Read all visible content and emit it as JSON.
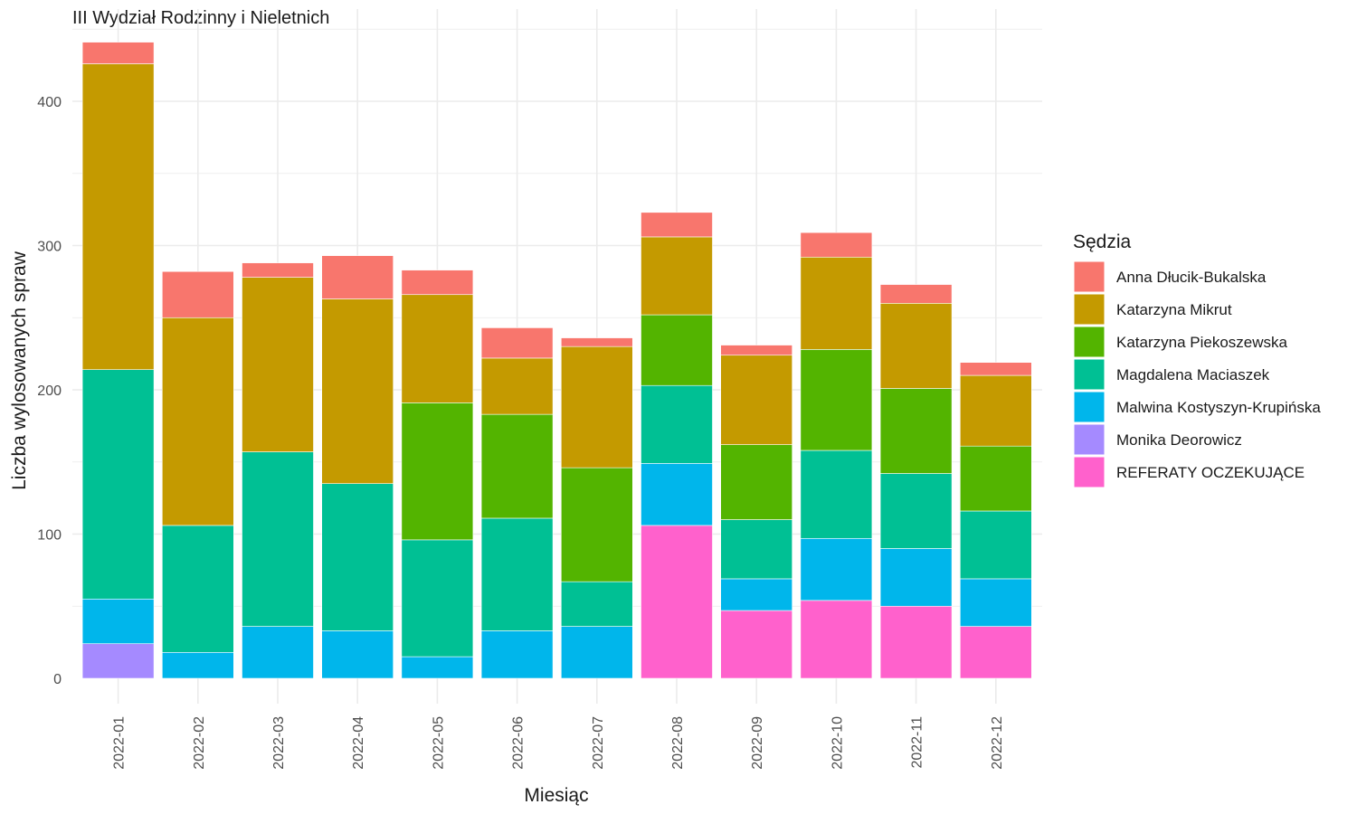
{
  "chart_data": {
    "type": "bar",
    "stacked": true,
    "title": "III Wydział Rodzinny i Nieletnich",
    "xlabel": "Miesiąc",
    "ylabel": "Liczba wylosowanych spraw",
    "ylim": [
      0,
      460
    ],
    "yticks": [
      0,
      100,
      200,
      300,
      400
    ],
    "grid": true,
    "legend_position": "right",
    "legend_title": "Sędzia",
    "categories": [
      "2022-01",
      "2022-02",
      "2022-03",
      "2022-04",
      "2022-05",
      "2022-06",
      "2022-07",
      "2022-08",
      "2022-09",
      "2022-10",
      "2022-11",
      "2022-12"
    ],
    "series": [
      {
        "name": "REFERATY OCZEKUJĄCE",
        "color": "#FF61CC",
        "values": [
          0,
          0,
          0,
          0,
          0,
          0,
          0,
          106,
          47,
          54,
          50,
          36
        ]
      },
      {
        "name": "Monika Deorowicz",
        "color": "#A58AFF",
        "values": [
          24,
          0,
          0,
          0,
          0,
          0,
          0,
          0,
          0,
          0,
          0,
          0
        ]
      },
      {
        "name": "Malwina Kostyszyn-Krupińska",
        "color": "#00B6EB",
        "values": [
          31,
          18,
          36,
          33,
          15,
          33,
          36,
          43,
          22,
          43,
          40,
          33
        ]
      },
      {
        "name": "Magdalena Maciaszek",
        "color": "#00C094",
        "values": [
          159,
          88,
          121,
          102,
          81,
          78,
          31,
          54,
          41,
          61,
          52,
          47
        ]
      },
      {
        "name": "Katarzyna Piekoszewska",
        "color": "#53B400",
        "values": [
          0,
          0,
          0,
          0,
          95,
          72,
          79,
          49,
          52,
          70,
          59,
          45
        ]
      },
      {
        "name": "Katarzyna Mikrut",
        "color": "#C49A00",
        "values": [
          212,
          144,
          121,
          128,
          75,
          39,
          84,
          54,
          62,
          64,
          59,
          49
        ]
      },
      {
        "name": "Anna Dłucik-Bukalska",
        "color": "#F8766D",
        "values": [
          15,
          32,
          10,
          30,
          17,
          21,
          6,
          17,
          7,
          17,
          13,
          9
        ]
      }
    ],
    "legend_order": [
      "Anna Dłucik-Bukalska",
      "Katarzyna Mikrut",
      "Katarzyna Piekoszewska",
      "Magdalena Maciaszek",
      "Malwina Kostyszyn-Krupińska",
      "Monika Deorowicz",
      "REFERATY OCZEKUJĄCE"
    ]
  }
}
